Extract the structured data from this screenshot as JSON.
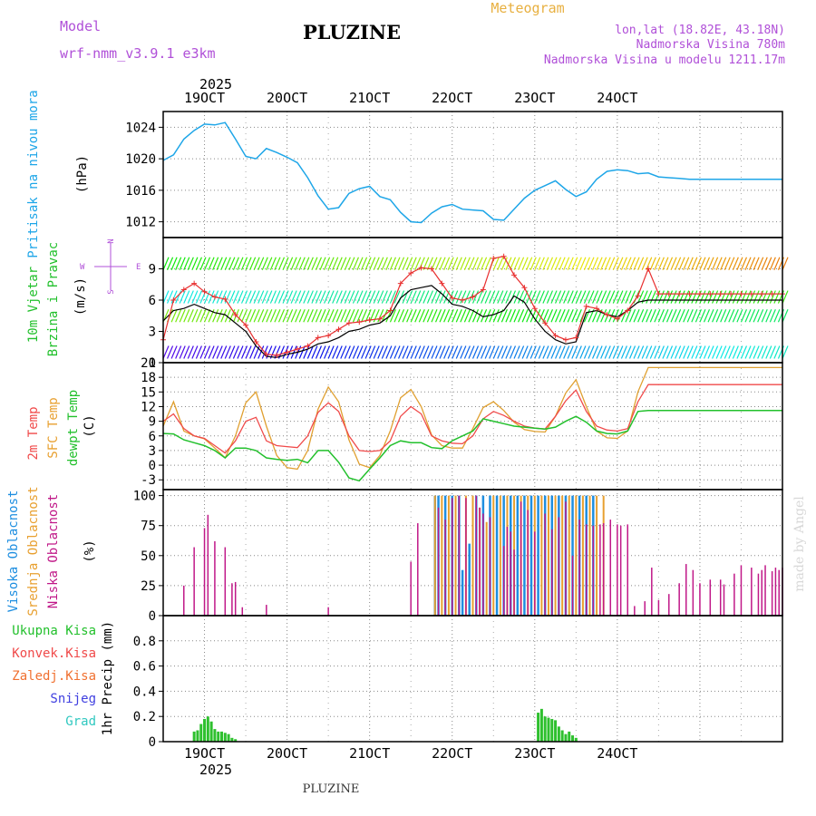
{
  "header": {
    "model_label": "Model",
    "model_name": "wrf-nmm_v3.9.1 e3km",
    "title": "PLUZINE",
    "subtitle": "Meteogram",
    "lonlat": "lon,lat (18.82E, 43.18N)",
    "elevation": "Nadmorska Visina 780m",
    "model_elevation": "Nadmorska Visina u modelu 1211.17m",
    "footer": "PLUZINE",
    "credit": "made by Angel"
  },
  "colors": {
    "pressure": "#1ea6e8",
    "temp2m": "#f04a4a",
    "sfc": "#e0a030",
    "dew": "#22c02c",
    "cloud_high": "#1e8ee0",
    "cloud_mid": "#e8a030",
    "cloud_low": "#c01888",
    "precip": "#2ec02e",
    "wind_speed": "#000000",
    "gust": "#e83030"
  },
  "axis": {
    "top_year": "2025",
    "bottom_year": "2025",
    "days": [
      "19OCT",
      "20OCT",
      "21OCT",
      "22OCT",
      "23OCT",
      "24OCT"
    ]
  },
  "panel_labels": {
    "pressure": {
      "title": "Pritisak na nivou mora",
      "unit": "(hPa)"
    },
    "wind": {
      "title1": "10m Vjetar",
      "title2": "Brzina i Pravac",
      "unit": "(m/s)",
      "compass_n": "N",
      "compass_s": "S",
      "compass_w": "W",
      "compass_e": "E"
    },
    "temp": {
      "l1": "2m Temp",
      "l2": "SFC Temp",
      "l3": "dewpt Temp",
      "unit": "(C)"
    },
    "cloud": {
      "l1": "Visoka Oblacnost",
      "l2": "Srednja Oblacnost",
      "l3": "Niska Oblacnost",
      "unit": "(%)"
    },
    "precip": {
      "l1": "Ukupna Kisa",
      "l2": "Konvek.Kisa",
      "l3": "Zaledj.Kisa",
      "l4": "Snijeg",
      "l5": "Grad",
      "unit": "1hr Precip (mm)"
    }
  },
  "chart_data": [
    {
      "type": "line",
      "name": "pressure",
      "title": "Pritisak na nivou mora",
      "ylabel": "(hPa)",
      "x_unit": "hours from 18 Oct 12:00",
      "ylim": [
        1010,
        1026
      ],
      "yticks": [
        1012,
        1016,
        1020,
        1024
      ],
      "x": [
        0,
        3,
        6,
        9,
        12,
        15,
        18,
        21,
        24,
        27,
        30,
        33,
        36,
        39,
        42,
        45,
        48,
        51,
        54,
        57,
        60,
        63,
        66,
        69,
        72,
        75,
        78,
        81,
        84,
        87,
        90,
        93,
        96,
        99,
        102,
        105,
        108,
        111,
        114,
        117,
        120,
        123,
        126,
        129,
        132,
        135,
        138,
        141,
        144,
        147,
        150,
        153,
        156,
        159,
        162,
        165,
        168,
        171,
        174,
        177,
        180
      ],
      "values": [
        1019.8,
        1020.5,
        1022.5,
        1023.6,
        1024.4,
        1024.3,
        1024.6,
        1022.5,
        1020.3,
        1020,
        1021.3,
        1020.8,
        1020.2,
        1019.5,
        1017.6,
        1015.3,
        1013.6,
        1013.8,
        1015.6,
        1016.2,
        1016.5,
        1015.2,
        1014.8,
        1013.2,
        1012,
        1011.9,
        1013.1,
        1013.9,
        1014.2,
        1013.6,
        1013.5,
        1013.4,
        1012.3,
        1012.2,
        1013.6,
        1015,
        1016,
        1016.6,
        1017.2,
        1016.1,
        1015.2,
        1015.8,
        1017.4,
        1018.4,
        1018.6,
        1018.5,
        1018.1,
        1018.2,
        1017.7,
        1017.6,
        1017.5,
        1017.4,
        1017.4,
        1017.4,
        1017.4,
        1017.4,
        1017.4,
        1017.4,
        1017.4,
        1017.4,
        1017.4
      ]
    },
    {
      "type": "line",
      "name": "wind",
      "title": "10m Vjetar Brzina i Pravac",
      "ylabel": "(m/s)",
      "ylim": [
        0,
        12
      ],
      "yticks": [
        0,
        3,
        6,
        9
      ],
      "x": [
        0,
        3,
        6,
        9,
        12,
        15,
        18,
        21,
        24,
        27,
        30,
        33,
        36,
        39,
        42,
        45,
        48,
        51,
        54,
        57,
        60,
        63,
        66,
        69,
        72,
        75,
        78,
        81,
        84,
        87,
        90,
        93,
        96,
        99,
        102,
        105,
        108,
        111,
        114,
        117,
        120,
        123,
        126,
        129,
        132,
        135,
        138,
        141,
        144,
        147,
        150,
        153,
        156,
        159,
        162,
        165,
        168,
        171,
        174,
        177,
        180
      ],
      "series": [
        {
          "name": "wind speed",
          "values": [
            4,
            5,
            5.2,
            5.6,
            5.2,
            4.8,
            4.6,
            3.8,
            3,
            1.6,
            0.6,
            0.5,
            0.8,
            1,
            1.3,
            1.8,
            2,
            2.4,
            3,
            3.2,
            3.6,
            3.8,
            4.5,
            6.2,
            7,
            7.2,
            7.4,
            6.6,
            5.6,
            5.4,
            5,
            4.4,
            4.6,
            5,
            6.4,
            5.8,
            4.2,
            3,
            2.2,
            1.8,
            2,
            4.8,
            5,
            4.6,
            4.4,
            5,
            5.8,
            6,
            6,
            6,
            6,
            6,
            6,
            6,
            6,
            6,
            6,
            6,
            6,
            6,
            6
          ]
        },
        {
          "name": "gust",
          "values": [
            2.2,
            6,
            7,
            7.6,
            6.8,
            6.3,
            6.1,
            4.6,
            3.6,
            2,
            0.8,
            0.7,
            1,
            1.3,
            1.6,
            2.4,
            2.6,
            3.2,
            3.8,
            3.9,
            4.1,
            4.2,
            5,
            7.6,
            8.6,
            9.1,
            9,
            7.6,
            6.2,
            6,
            6.3,
            7,
            10,
            10.2,
            8.4,
            7.2,
            5.2,
            3.8,
            2.6,
            2.2,
            2.4,
            5.4,
            5.2,
            4.6,
            4.2,
            5,
            6.4,
            9,
            6.6,
            6.6,
            6.6,
            6.6,
            6.6,
            6.6,
            6.6,
            6.6,
            6.6,
            6.6,
            6.6,
            6.6,
            6.6
          ]
        }
      ]
    },
    {
      "type": "line",
      "name": "temperature",
      "title": "2m Temp / SFC Temp / dewpt Temp",
      "ylabel": "(C)",
      "ylim": [
        -5,
        21
      ],
      "yticks": [
        -3,
        0,
        3,
        6,
        9,
        12,
        15,
        18,
        21
      ],
      "x": [
        0,
        3,
        6,
        9,
        12,
        15,
        18,
        21,
        24,
        27,
        30,
        33,
        36,
        39,
        42,
        45,
        48,
        51,
        54,
        57,
        60,
        63,
        66,
        69,
        72,
        75,
        78,
        81,
        84,
        87,
        90,
        93,
        96,
        99,
        102,
        105,
        108,
        111,
        114,
        117,
        120,
        123,
        126,
        129,
        132,
        135,
        138,
        141,
        144,
        147,
        150,
        153,
        156,
        159,
        162,
        165,
        168,
        171,
        174,
        177,
        180
      ],
      "series": [
        {
          "name": "2m Temp",
          "values": [
            9,
            10.5,
            7.5,
            6,
            5.5,
            4,
            2.5,
            5,
            9,
            9.8,
            5,
            4,
            3.8,
            3.6,
            6,
            10.8,
            12.8,
            11,
            6,
            3,
            2.8,
            3,
            5,
            10,
            12,
            10.5,
            6,
            5,
            4.5,
            4.4,
            6,
            9.5,
            11,
            10.2,
            9,
            8,
            7.6,
            7.4,
            10,
            13.2,
            15.4,
            11,
            8,
            7.2,
            7,
            7.5,
            13,
            16.5,
            16.5,
            16.5,
            16.5,
            16.5,
            16.5,
            16.5,
            16.5,
            16.5,
            16.5,
            16.5,
            16.5,
            16.5,
            16.5
          ]
        },
        {
          "name": "SFC Temp",
          "values": [
            8,
            13,
            7,
            6,
            5.4,
            3.5,
            1.5,
            6,
            12.8,
            15,
            8,
            2,
            -0.5,
            -0.8,
            3,
            11.5,
            16,
            13,
            5.2,
            0.2,
            -0.5,
            2,
            7,
            13.8,
            15.5,
            12,
            6.2,
            4,
            3.5,
            3.5,
            7.5,
            11.8,
            13,
            11.2,
            8.8,
            7.3,
            6.9,
            6.8,
            10,
            14.8,
            17.5,
            12,
            7,
            5.6,
            5.5,
            7,
            15,
            20,
            20,
            20,
            20,
            20,
            20,
            20,
            20,
            20,
            20,
            20,
            20,
            20,
            20
          ]
        },
        {
          "name": "dewpt Temp",
          "values": [
            6.5,
            6.4,
            5.2,
            4.6,
            4,
            3,
            1.5,
            3.5,
            3.5,
            3,
            1.5,
            1.2,
            1,
            1.2,
            0.5,
            3,
            3,
            0.6,
            -2.6,
            -3.2,
            -0.8,
            1.5,
            4,
            5,
            4.6,
            4.6,
            3.6,
            3.4,
            5,
            6,
            7,
            9.5,
            9,
            8.5,
            8,
            7.8,
            7.6,
            7.4,
            7.8,
            9,
            10,
            8.8,
            7,
            6.5,
            6.4,
            7,
            11,
            11.2,
            11.2,
            11.2,
            11.2,
            11.2,
            11.2,
            11.2,
            11.2,
            11.2,
            11.2,
            11.2,
            11.2,
            11.2,
            11.2
          ]
        }
      ]
    },
    {
      "type": "bar",
      "name": "cloud",
      "title": "Visoka / Srednja / Niska Oblacnost",
      "ylabel": "(%)",
      "ylim": [
        0,
        105
      ],
      "yticks": [
        0,
        25,
        50,
        75,
        100
      ],
      "series": [
        {
          "name": "Niska",
          "x": [
            6,
            9,
            12,
            13,
            15,
            18,
            20,
            21,
            23,
            30,
            48,
            72,
            74,
            80,
            82,
            84,
            86,
            88,
            91,
            92,
            93,
            95,
            99,
            100,
            101,
            102,
            104,
            106,
            108,
            111,
            113,
            115,
            117,
            119,
            121,
            123,
            125,
            127,
            128,
            130,
            132,
            133,
            135,
            137,
            140,
            142,
            144,
            147,
            150,
            152,
            154,
            156,
            159,
            162,
            163,
            166,
            168,
            171,
            173,
            174,
            175,
            177,
            178,
            179,
            180
          ],
          "values": [
            25,
            57,
            73,
            84,
            62,
            57,
            27,
            28,
            7,
            9,
            7,
            45,
            77,
            90,
            80,
            98,
            100,
            98,
            100,
            90,
            85,
            82,
            58,
            74,
            70,
            55,
            95,
            88,
            70,
            85,
            72,
            82,
            95,
            50,
            80,
            76,
            75,
            76,
            77,
            80,
            76,
            75,
            76,
            8,
            12,
            40,
            13,
            18,
            27,
            43,
            38,
            27,
            30,
            30,
            26,
            35,
            42,
            40,
            35,
            38,
            42,
            37,
            40,
            38,
            40
          ]
        },
        {
          "name": "Srednja",
          "x": [
            79,
            81,
            83,
            85,
            88,
            90,
            92,
            94,
            96,
            98,
            100,
            102,
            104,
            106,
            108,
            110,
            112,
            114,
            116,
            118,
            120,
            122,
            124,
            126,
            128
          ],
          "values": [
            100,
            100,
            100,
            100,
            100,
            100,
            90,
            78,
            100,
            100,
            100,
            100,
            100,
            100,
            100,
            100,
            100,
            100,
            100,
            100,
            100,
            100,
            100,
            100,
            100
          ]
        },
        {
          "name": "Visoka",
          "x": [
            79,
            80,
            82,
            84,
            86,
            87,
            89,
            91,
            93,
            95,
            97,
            99,
            101,
            103,
            105,
            107,
            109,
            111,
            113,
            115,
            117,
            119,
            121,
            123,
            125
          ],
          "values": [
            100,
            100,
            100,
            100,
            100,
            38,
            60,
            100,
            100,
            100,
            100,
            100,
            100,
            100,
            100,
            100,
            100,
            100,
            100,
            100,
            100,
            100,
            100,
            100,
            100
          ]
        }
      ]
    },
    {
      "type": "bar",
      "name": "precip",
      "title": "1hr Precip",
      "ylabel": "1hr Precip (mm)",
      "ylim": [
        0,
        1.0
      ],
      "yticks": [
        0,
        0.2,
        0.4,
        0.6,
        0.8
      ],
      "series": [
        {
          "name": "Ukupna Kisa",
          "x": [
            9,
            10,
            11,
            12,
            13,
            14,
            15,
            16,
            17,
            18,
            19,
            20,
            21,
            109,
            110,
            111,
            112,
            113,
            114,
            115,
            116,
            117,
            118,
            119,
            120
          ],
          "values": [
            0.08,
            0.09,
            0.14,
            0.18,
            0.2,
            0.16,
            0.1,
            0.08,
            0.08,
            0.07,
            0.06,
            0.03,
            0.02,
            0.23,
            0.26,
            0.2,
            0.19,
            0.18,
            0.17,
            0.12,
            0.09,
            0.06,
            0.08,
            0.05,
            0.03
          ]
        }
      ]
    }
  ]
}
